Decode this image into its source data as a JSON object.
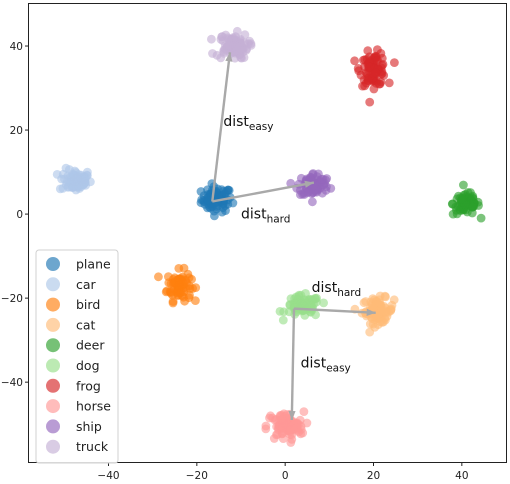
{
  "chart_data": {
    "type": "scatter",
    "title": "",
    "xlabel": "",
    "ylabel": "",
    "xlim": [
      -58,
      50
    ],
    "ylim": [
      -59,
      50
    ],
    "xticks": [
      -40,
      -20,
      0,
      20,
      40
    ],
    "yticks": [
      -40,
      -20,
      0,
      20,
      40
    ],
    "xtick_labels": [
      "−40",
      "−20",
      "0",
      "20",
      "40"
    ],
    "ytick_labels": [
      "−40",
      "−20",
      "0",
      "20",
      "40"
    ],
    "grid": false,
    "legend_position": "lower-left",
    "series": [
      {
        "name": "plane",
        "color": "#1f77b4",
        "center": [
          -15.5,
          3.5
        ],
        "spread": [
          2.3,
          2.0
        ],
        "count": 80
      },
      {
        "name": "car",
        "color": "#aec7e8",
        "center": [
          -47.5,
          8.0
        ],
        "spread": [
          2.4,
          1.8
        ],
        "count": 70
      },
      {
        "name": "bird",
        "color": "#ff7f0e",
        "center": [
          -24.0,
          -17.0
        ],
        "spread": [
          1.8,
          2.4
        ],
        "count": 75
      },
      {
        "name": "cat",
        "color": "#ffbb78",
        "center": [
          21.0,
          -23.0
        ],
        "spread": [
          2.4,
          2.0
        ],
        "count": 85
      },
      {
        "name": "deer",
        "color": "#2ca02c",
        "center": [
          41.0,
          2.5
        ],
        "spread": [
          2.0,
          1.8
        ],
        "count": 70
      },
      {
        "name": "dog",
        "color": "#98df8a",
        "center": [
          4.0,
          -22.0
        ],
        "spread": [
          2.6,
          1.7
        ],
        "count": 80
      },
      {
        "name": "frog",
        "color": "#d62728",
        "center": [
          20.0,
          34.5
        ],
        "spread": [
          2.0,
          2.6
        ],
        "count": 80
      },
      {
        "name": "horse",
        "color": "#ff9896",
        "center": [
          0.0,
          -50.5
        ],
        "spread": [
          2.8,
          2.3
        ],
        "count": 85
      },
      {
        "name": "ship",
        "color": "#9467bd",
        "center": [
          6.5,
          7.0
        ],
        "spread": [
          2.4,
          1.9
        ],
        "count": 80
      },
      {
        "name": "truck",
        "color": "#c5b0d5",
        "center": [
          -12.0,
          40.0
        ],
        "spread": [
          2.4,
          2.0
        ],
        "count": 80
      }
    ],
    "arrows": [
      {
        "from": [
          -16.5,
          3.0
        ],
        "to": [
          -12.5,
          38.5
        ]
      },
      {
        "from": [
          -16.5,
          3.0
        ],
        "to": [
          6.5,
          7.5
        ]
      },
      {
        "from": [
          2.0,
          -22.5
        ],
        "to": [
          20.5,
          -23.5
        ]
      },
      {
        "from": [
          2.0,
          -22.5
        ],
        "to": [
          1.5,
          -49.0
        ]
      }
    ],
    "annotations": [
      {
        "base": "dist",
        "sub": "easy",
        "at": [
          -14,
          21
        ]
      },
      {
        "base": "dist",
        "sub": "hard",
        "at": [
          -10,
          -1
        ]
      },
      {
        "base": "dist",
        "sub": "hard",
        "at": [
          6,
          -18.5
        ]
      },
      {
        "base": "dist",
        "sub": "easy",
        "at": [
          3.5,
          -36.5
        ]
      }
    ]
  }
}
